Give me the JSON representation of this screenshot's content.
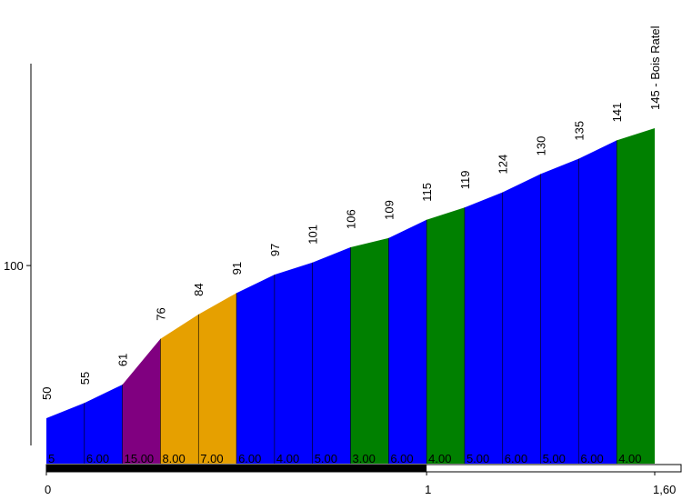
{
  "colors": {
    "blue": "#0000ff",
    "green": "#008000",
    "purple": "#800080",
    "orange": "#e6a000",
    "axis": "#000000"
  },
  "chart_data": {
    "type": "area",
    "title": "",
    "xlabel": "",
    "ylabel": "",
    "xlim": [
      0,
      1.6
    ],
    "ylim": [
      40,
      155
    ],
    "x_ticks": [
      {
        "value": 0,
        "label": "0"
      },
      {
        "value": 1,
        "label": "1"
      },
      {
        "value": 1.6,
        "label": "1,60"
      }
    ],
    "y_ticks": [
      {
        "value": 100,
        "label": "100"
      }
    ],
    "points": [
      {
        "x": 0.0,
        "label": "50"
      },
      {
        "x": 0.1,
        "label": "55"
      },
      {
        "x": 0.2,
        "label": "61"
      },
      {
        "x": 0.3,
        "label": "76"
      },
      {
        "x": 0.4,
        "label": "84"
      },
      {
        "x": 0.5,
        "label": "91"
      },
      {
        "x": 0.6,
        "label": "97"
      },
      {
        "x": 0.7,
        "label": "101"
      },
      {
        "x": 0.8,
        "label": "106"
      },
      {
        "x": 0.9,
        "label": "109"
      },
      {
        "x": 1.0,
        "label": "115"
      },
      {
        "x": 1.1,
        "label": "119"
      },
      {
        "x": 1.2,
        "label": "124"
      },
      {
        "x": 1.3,
        "label": "130"
      },
      {
        "x": 1.4,
        "label": "135"
      },
      {
        "x": 1.5,
        "label": "141"
      },
      {
        "x": 1.6,
        "label": "145 - Bois Ratel"
      }
    ],
    "elevation": [
      50,
      55,
      61,
      76,
      84,
      91,
      97,
      101,
      106,
      109,
      115,
      119,
      124,
      130,
      135,
      141,
      145
    ],
    "segments": [
      {
        "grade": "5",
        "color": "blue"
      },
      {
        "grade": "6.00",
        "color": "blue"
      },
      {
        "grade": "15.00",
        "color": "purple"
      },
      {
        "grade": "8.00",
        "color": "orange"
      },
      {
        "grade": "7.00",
        "color": "orange"
      },
      {
        "grade": "6.00",
        "color": "blue"
      },
      {
        "grade": "4.00",
        "color": "blue"
      },
      {
        "grade": "5.00",
        "color": "blue"
      },
      {
        "grade": "3.00",
        "color": "green"
      },
      {
        "grade": "6.00",
        "color": "blue"
      },
      {
        "grade": "4.00",
        "color": "green"
      },
      {
        "grade": "5.00",
        "color": "blue"
      },
      {
        "grade": "6.00",
        "color": "blue"
      },
      {
        "grade": "5.00",
        "color": "blue"
      },
      {
        "grade": "6.00",
        "color": "blue"
      },
      {
        "grade": "4.00",
        "color": "green"
      }
    ],
    "distance_bar": {
      "filled_to": 1.0
    }
  }
}
